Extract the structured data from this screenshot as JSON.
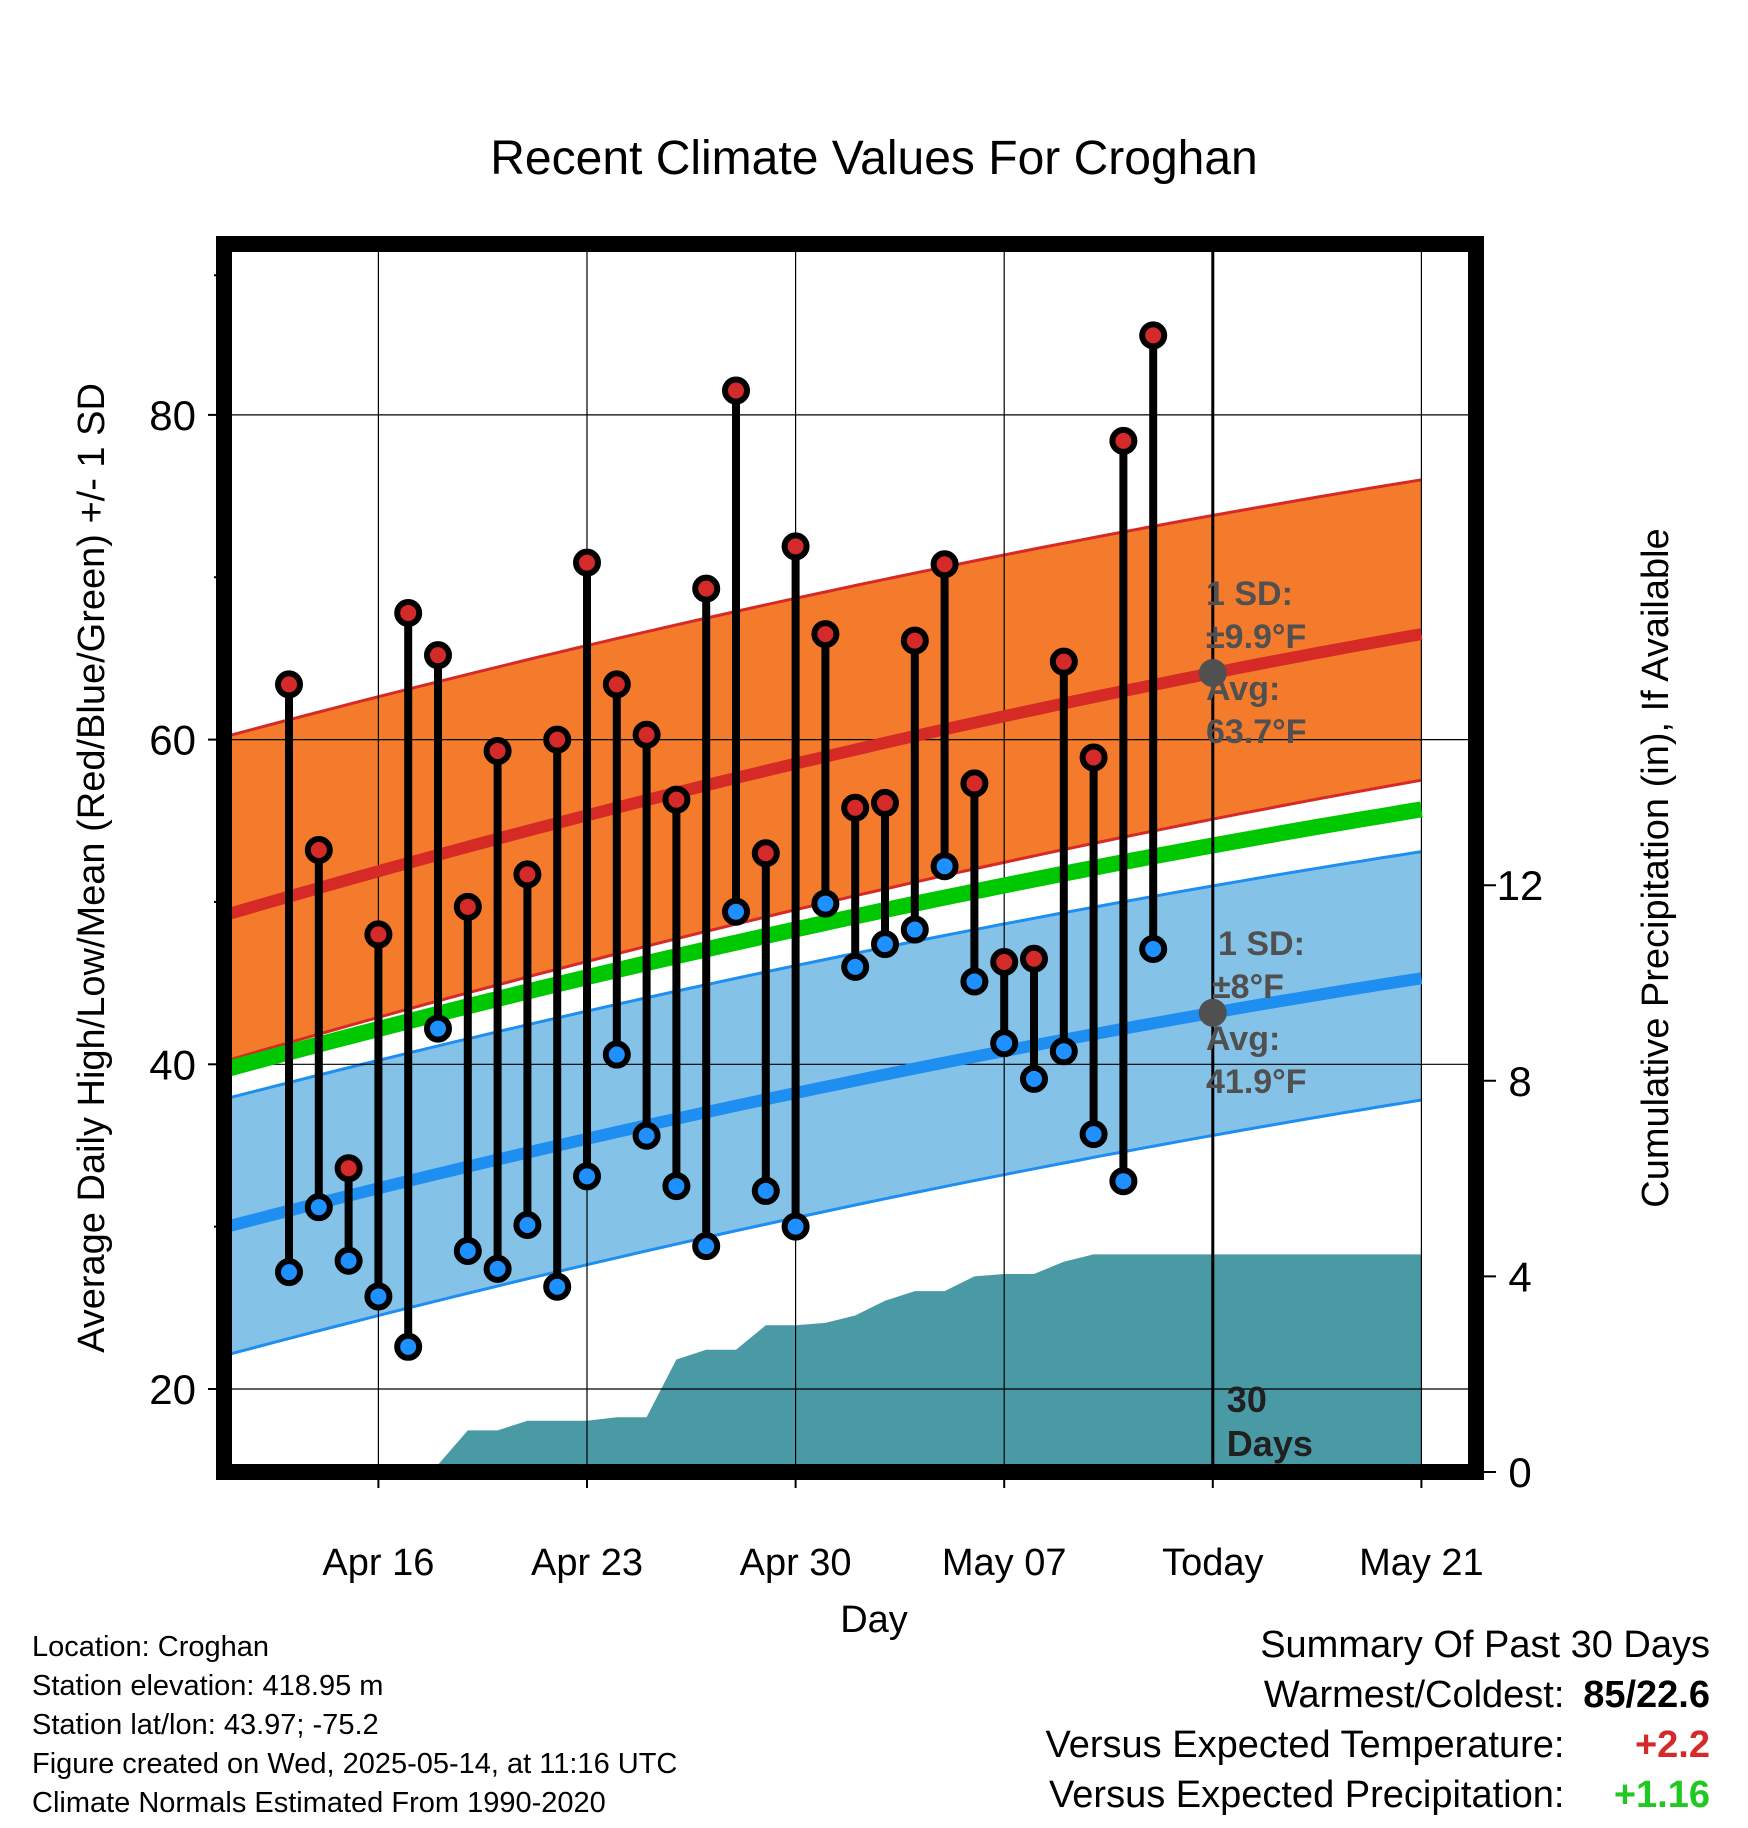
{
  "title": "Recent Climate Values For Croghan",
  "chart_data": {
    "type": "line",
    "title": "Recent Climate Values For Croghan",
    "xlabel": "Day",
    "ylabel": "Average Daily High/Low/Mean (Red/Blue/Green) +/- 1 SD",
    "y2label": "Cumulative Precipitation (in), If Available",
    "ylim": [
      15,
      90
    ],
    "y2lim": [
      0,
      20
    ],
    "xlim": [
      -2.5,
      38
    ],
    "x_ticks": [
      {
        "x": 3,
        "label": "Apr 16"
      },
      {
        "x": 10,
        "label": "Apr 23"
      },
      {
        "x": 17,
        "label": "Apr 30"
      },
      {
        "x": 24,
        "label": "May 07"
      },
      {
        "x": 31,
        "label": "Today"
      },
      {
        "x": 38,
        "label": "May 21"
      }
    ],
    "y_ticks": [
      20,
      40,
      60,
      80
    ],
    "y2_ticks": [
      0,
      4,
      8,
      12
    ],
    "grid": true,
    "today_x": 31,
    "today_label": "30 Days",
    "observed_high": [
      63.4,
      53.2,
      33.6,
      48.0,
      67.8,
      65.2,
      49.7,
      59.3,
      51.7,
      60.0,
      70.9,
      63.4,
      60.3,
      56.3,
      69.3,
      81.5,
      53.0,
      71.9,
      66.5,
      55.8,
      56.1,
      66.1,
      70.8,
      57.3,
      46.3,
      46.5,
      64.8,
      58.9,
      78.4,
      84.9
    ],
    "observed_low": [
      27.2,
      31.2,
      27.9,
      25.7,
      22.6,
      42.2,
      28.5,
      27.4,
      30.1,
      26.3,
      33.1,
      40.6,
      35.6,
      32.5,
      28.8,
      49.4,
      32.2,
      30.0,
      49.9,
      46.0,
      47.4,
      48.3,
      52.2,
      45.1,
      41.3,
      39.1,
      40.8,
      35.7,
      32.8,
      47.1
    ],
    "high_avg_start": 49.0,
    "high_avg_end": 66.5,
    "high_sd": 9.9,
    "high_upper_start": 60.0,
    "high_upper_end": 76.0,
    "high_lower_start": 40.0,
    "high_lower_end": 57.5,
    "mean_start": 39.5,
    "mean_end": 55.7,
    "low_avg_start": 29.8,
    "low_avg_end": 45.3,
    "low_sd": 8,
    "low_upper_start": 37.7,
    "low_upper_end": 53.1,
    "low_lower_start": 21.9,
    "low_lower_end": 37.8,
    "precip_x": [
      0,
      1,
      2,
      3,
      4,
      5,
      6,
      7,
      8,
      9,
      10,
      11,
      12,
      13,
      14,
      15,
      16,
      17,
      18,
      19,
      20,
      21,
      22,
      23,
      24,
      25,
      26,
      27,
      28,
      29
    ],
    "precip_cumulative": [
      0,
      0,
      0,
      0.1,
      0.1,
      0.15,
      0.85,
      0.85,
      1.05,
      1.05,
      1.05,
      1.12,
      1.12,
      2.3,
      2.5,
      2.5,
      3.0,
      3.0,
      3.05,
      3.2,
      3.5,
      3.7,
      3.7,
      4.0,
      4.05,
      4.05,
      4.3,
      4.45,
      4.45,
      4.45
    ],
    "annotations": {
      "high_sd_label": "1 SD:",
      "high_sd_value": "±9.9°F",
      "high_avg_label": "Avg:",
      "high_avg_value": "63.7°F",
      "low_sd_label": "1 SD:",
      "low_sd_value": "±8°F",
      "low_avg_label": "Avg:",
      "low_avg_value": "41.9°F"
    },
    "colors": {
      "high_band": "#f47b2c",
      "high_line": "#d62a26",
      "mean_line": "#00c800",
      "low_band": "#85c2e8",
      "low_line": "#1e8ef0",
      "precip": "#4a9aa5",
      "high_dot": "#d42a2a",
      "low_dot": "#1e90ff",
      "annotation": "#505050",
      "today_dot": "#505050"
    }
  },
  "footer": {
    "location": "Location: Croghan",
    "elevation": "Station elevation: 418.95 m",
    "latlon": "Station lat/lon: 43.97; -75.2",
    "created": "Figure created on Wed, 2025-05-14, at 11:16 UTC",
    "normals": "Climate Normals Estimated From 1990-2020"
  },
  "summary": {
    "heading": "Summary Of Past 30 Days",
    "warm_label": "Warmest/Coldest:",
    "warm_high": "85",
    "warm_sep": "/",
    "warm_low": "22.6",
    "temp_label": "Versus Expected Temperature:",
    "temp_value": "+2.2",
    "temp_color": "#d42a2a",
    "precip_label": "Versus Expected Precipitation:",
    "precip_value": "+1.16",
    "precip_color": "#22c822"
  }
}
